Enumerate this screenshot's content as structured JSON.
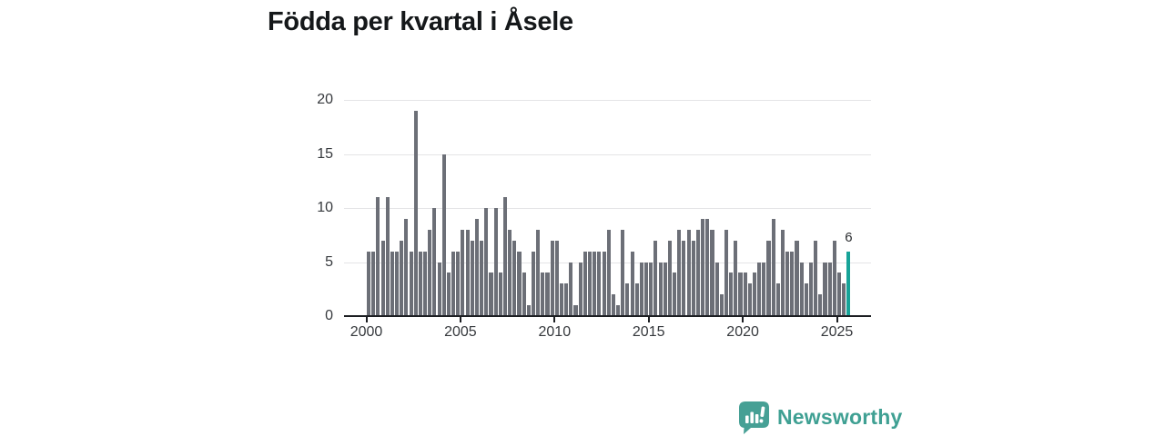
{
  "header": {
    "title": "Födda per kvartal i Åsele"
  },
  "chart": {
    "annotation_label": "6",
    "y_axis_tick_labels": [
      "20",
      "15",
      "10",
      "5",
      "0"
    ],
    "x_axis_tick_labels": [
      "2000",
      "2005",
      "2010",
      "2015",
      "2020",
      "2025"
    ]
  },
  "colors": {
    "bar": "#6c6f77",
    "highlight": "#17a398",
    "grid": "#e4e4e6",
    "axis": "#1c1e22",
    "label": "#36393d",
    "title": "#15181a",
    "brand": "#3fa093"
  },
  "footer": {
    "brand_name": "Newsworthy"
  },
  "chart_data": {
    "type": "bar",
    "title": "Födda per kvartal i Åsele",
    "x_unit": "quarter",
    "x_start": "2000 Q1",
    "x_end": "2025 Q3",
    "x_tick_labels": [
      "2000",
      "2005",
      "2010",
      "2015",
      "2020",
      "2025"
    ],
    "xlabel": "",
    "ylabel": "",
    "ylim": [
      0,
      20
    ],
    "y_ticks": [
      0,
      5,
      10,
      15,
      20
    ],
    "grid": true,
    "highlighted_last_value": 6,
    "values": [
      6,
      6,
      11,
      7,
      11,
      6,
      6,
      7,
      9,
      6,
      19,
      6,
      6,
      8,
      10,
      5,
      15,
      4,
      6,
      6,
      8,
      8,
      7,
      9,
      7,
      10,
      4,
      10,
      4,
      11,
      8,
      7,
      6,
      4,
      1,
      6,
      8,
      4,
      4,
      7,
      7,
      3,
      3,
      5,
      1,
      5,
      6,
      6,
      6,
      6,
      6,
      8,
      2,
      1,
      8,
      3,
      6,
      3,
      5,
      5,
      5,
      7,
      5,
      5,
      7,
      4,
      8,
      7,
      8,
      7,
      8,
      9,
      9,
      8,
      5,
      2,
      8,
      4,
      7,
      4,
      4,
      3,
      4,
      5,
      5,
      7,
      9,
      3,
      8,
      6,
      6,
      7,
      5,
      3,
      5,
      7,
      2,
      5,
      5,
      7,
      4,
      3,
      6
    ]
  }
}
